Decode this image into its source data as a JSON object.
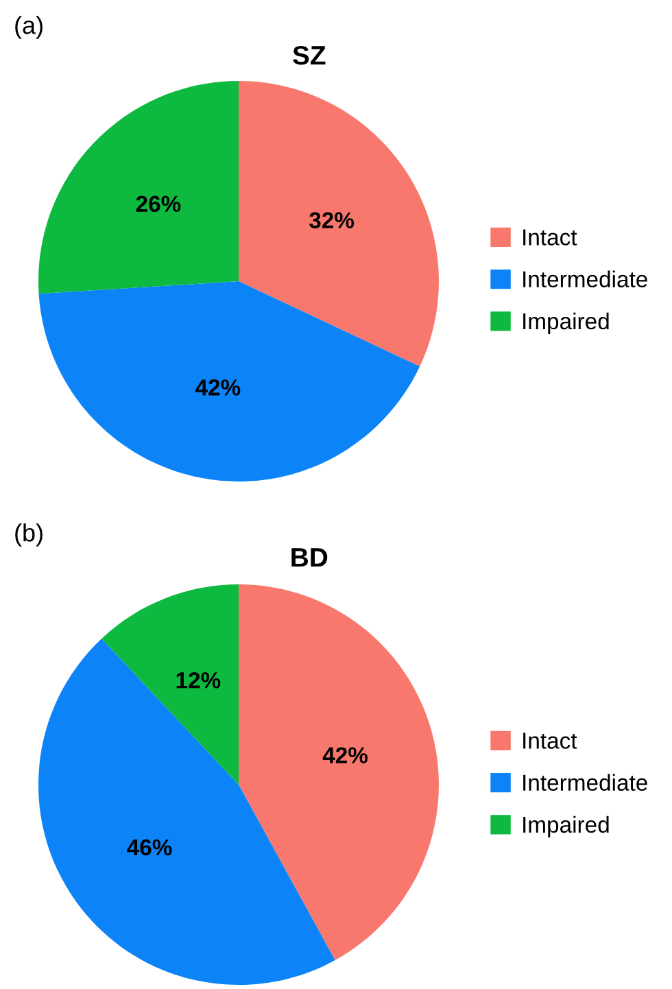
{
  "chart_data": [
    {
      "type": "pie",
      "title": "SZ",
      "annotations": [
        "(a)"
      ],
      "categories": [
        "Intact",
        "Intermediate",
        "Impaired"
      ],
      "values": [
        32,
        42,
        26
      ],
      "value_labels": [
        "32%",
        "42%",
        "26%"
      ],
      "colors": [
        "#f8786d",
        "#0c84f8",
        "#0db93f"
      ],
      "legend": "right"
    },
    {
      "type": "pie",
      "title": "BD",
      "annotations": [
        "(b)"
      ],
      "categories": [
        "Intact",
        "Intermediate",
        "Impaired"
      ],
      "values": [
        42,
        46,
        12
      ],
      "value_labels": [
        "42%",
        "46%",
        "12%"
      ],
      "colors": [
        "#f8786d",
        "#0c84f8",
        "#0db93f"
      ],
      "legend": "right"
    }
  ]
}
